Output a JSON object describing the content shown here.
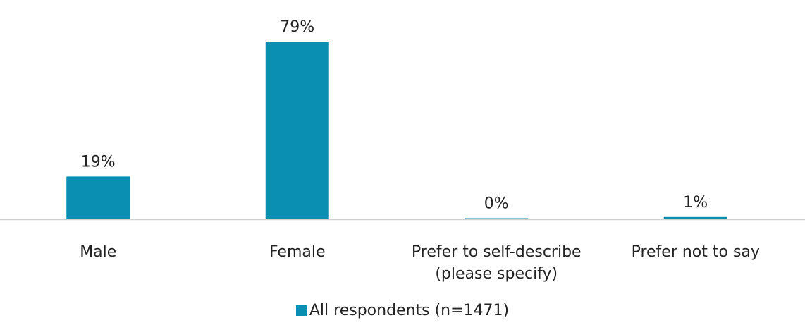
{
  "chart_data": {
    "type": "bar",
    "categories": [
      [
        "Male"
      ],
      [
        "Female"
      ],
      [
        "Prefer to self-describe",
        "(please specify)"
      ],
      [
        "Prefer not to say"
      ]
    ],
    "series": [
      {
        "name": "All respondents (n=1471)",
        "values": [
          19,
          79,
          0,
          1
        ],
        "labels": [
          "19%",
          "79%",
          "0%",
          "1%"
        ],
        "color": "#0A8FB2"
      }
    ],
    "ylim": [
      0,
      80
    ],
    "grid": false,
    "legend": "bottom-center",
    "axis_color": "#d0d0d0"
  }
}
